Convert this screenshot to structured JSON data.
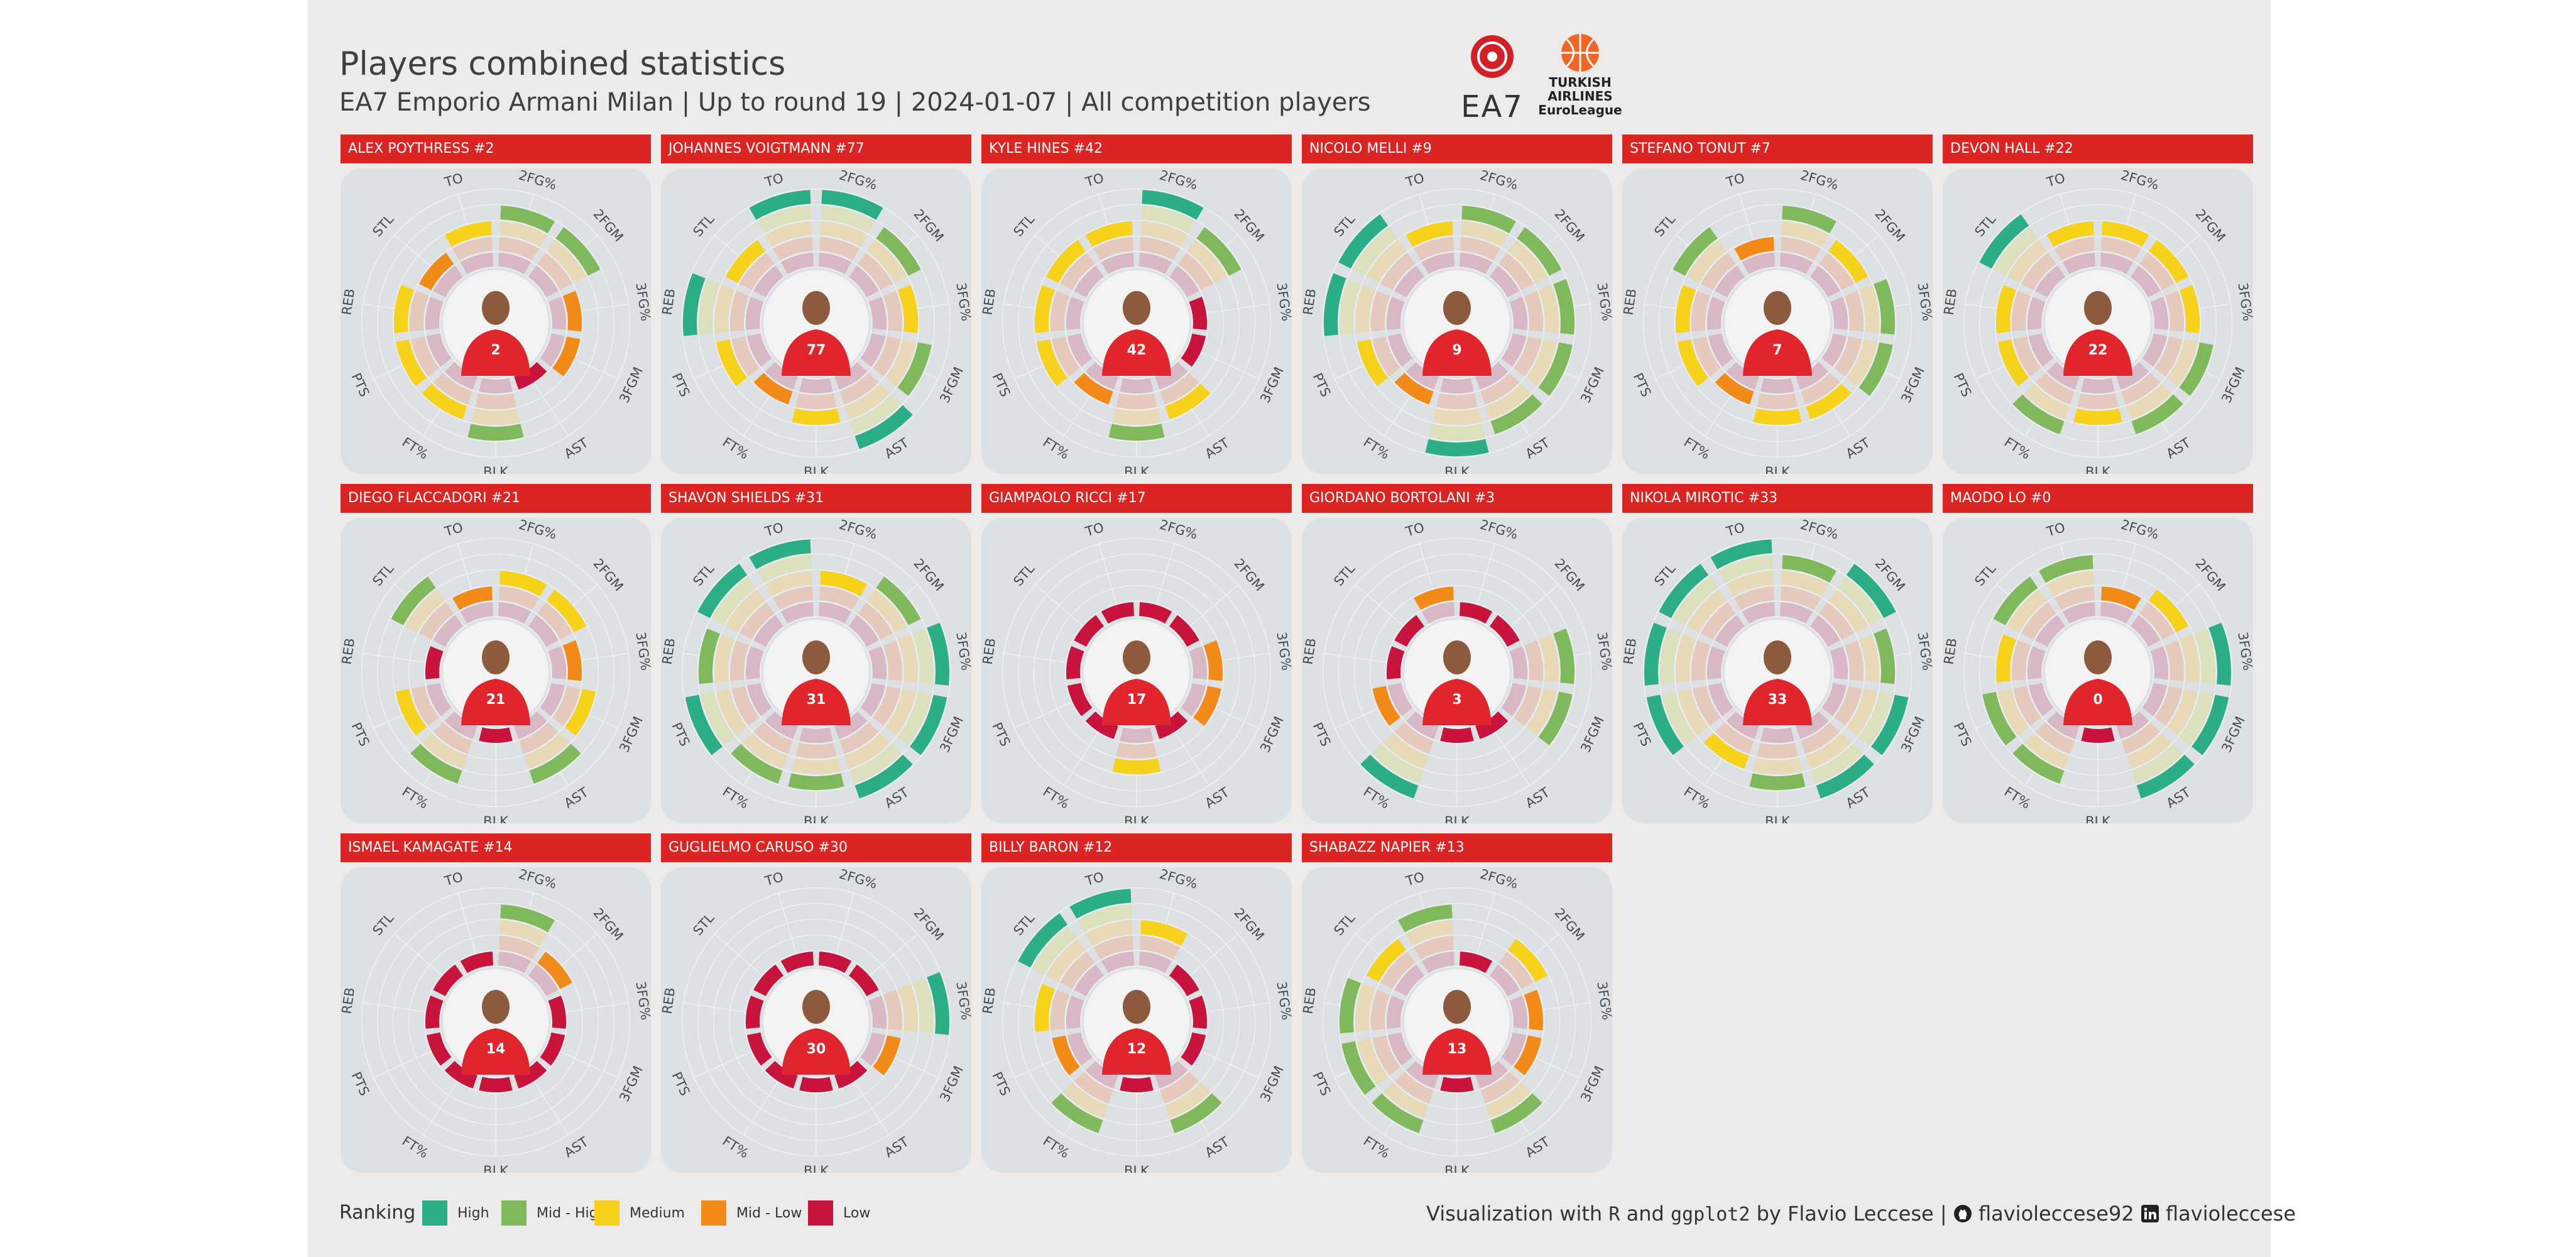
{
  "header": {
    "title": "Players combined statistics",
    "subtitle": "EA7 Emporio Armani Milan | Up to round 19 | 2024-01-07 | All competition players"
  },
  "logos": {
    "team_text": "EA7",
    "euroleague_text_1": "TURKISH",
    "euroleague_text_2": "AIRLINES",
    "euroleague_text_3": "EuroLeague"
  },
  "legend": {
    "title": "Ranking",
    "items": [
      {
        "label": "High",
        "color": "#2bae85"
      },
      {
        "label": "Mid - High",
        "color": "#80b95c"
      },
      {
        "label": "Medium",
        "color": "#f7d21b"
      },
      {
        "label": "Mid - Low",
        "color": "#f28a17"
      },
      {
        "label": "Low",
        "color": "#c8133d"
      }
    ]
  },
  "caption": {
    "prefix": "Visualization with",
    "tool1": "R",
    "mid": "and",
    "tool2": "ggplot2",
    "author": "by Flavio Leccese |",
    "github": "flavioleccese92",
    "linkedin": "flavioleccese"
  },
  "chart_data": {
    "type": "radial-bar",
    "level_scale": "1 = Low ... 5 = High",
    "stats": [
      "2FG%",
      "2FGM",
      "3FG%",
      "3FGM",
      "AST",
      "BLK",
      "FT%",
      "PTS",
      "REB",
      "STL",
      "TO"
    ],
    "players": [
      {
        "name": "ALEX POYTHRESS #2",
        "jersey": "2",
        "values": [
          4,
          4,
          2,
          2,
          1,
          4,
          3,
          3,
          3,
          2,
          3
        ]
      },
      {
        "name": "JOHANNES VOIGTMANN #77",
        "jersey": "77",
        "values": [
          5,
          4,
          3,
          4,
          5,
          3,
          2,
          3,
          5,
          3,
          5
        ]
      },
      {
        "name": "KYLE HINES #42",
        "jersey": "42",
        "values": [
          5,
          4,
          1,
          1,
          3,
          4,
          2,
          3,
          3,
          3,
          3
        ]
      },
      {
        "name": "NICOLO MELLI #9",
        "jersey": "9",
        "values": [
          4,
          4,
          4,
          4,
          4,
          5,
          2,
          3,
          5,
          5,
          3
        ]
      },
      {
        "name": "STEFANO TONUT #7",
        "jersey": "7",
        "values": [
          4,
          3,
          4,
          4,
          3,
          3,
          2,
          3,
          3,
          4,
          2
        ]
      },
      {
        "name": "DEVON HALL #22",
        "jersey": "22",
        "values": [
          3,
          3,
          3,
          4,
          4,
          3,
          4,
          3,
          3,
          5,
          3
        ]
      },
      {
        "name": "DIEGO FLACCADORI #21",
        "jersey": "21",
        "values": [
          3,
          3,
          2,
          3,
          4,
          1,
          4,
          3,
          1,
          4,
          2
        ]
      },
      {
        "name": "SHAVON SHIELDS #31",
        "jersey": "31",
        "values": [
          3,
          4,
          5,
          5,
          5,
          4,
          4,
          5,
          4,
          5,
          5
        ]
      },
      {
        "name": "GIAMPAOLO RICCI #17",
        "jersey": "17",
        "values": [
          1,
          1,
          2,
          2,
          1,
          3,
          1,
          1,
          1,
          1,
          1
        ]
      },
      {
        "name": "GIORDANO BORTOLANI #3",
        "jersey": "3",
        "values": [
          1,
          1,
          4,
          4,
          1,
          1,
          5,
          2,
          1,
          1,
          2
        ]
      },
      {
        "name": "NIKOLA MIROTIC #33",
        "jersey": "33",
        "values": [
          4,
          5,
          4,
          5,
          5,
          4,
          3,
          5,
          5,
          5,
          5
        ]
      },
      {
        "name": "MAODO LO #0",
        "jersey": "0",
        "values": [
          2,
          3,
          5,
          5,
          5,
          1,
          4,
          4,
          3,
          4,
          4
        ]
      },
      {
        "name": "ISMAEL KAMAGATE #14",
        "jersey": "14",
        "values": [
          4,
          2,
          1,
          1,
          1,
          1,
          1,
          1,
          1,
          1,
          1
        ]
      },
      {
        "name": "GUGLIELMO CARUSO #30",
        "jersey": "30",
        "values": [
          1,
          1,
          5,
          2,
          1,
          1,
          1,
          1,
          1,
          1,
          1
        ]
      },
      {
        "name": "BILLY BARON #12",
        "jersey": "12",
        "values": [
          3,
          1,
          1,
          1,
          4,
          1,
          4,
          2,
          3,
          5,
          5
        ]
      },
      {
        "name": "SHABAZZ NAPIER #13",
        "jersey": "13",
        "values": [
          1,
          3,
          2,
          2,
          4,
          1,
          4,
          4,
          4,
          3,
          4
        ]
      }
    ]
  }
}
